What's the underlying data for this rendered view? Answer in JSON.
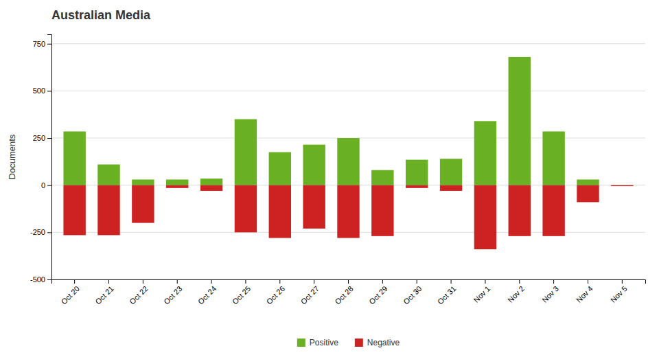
{
  "chart_data": {
    "type": "bar",
    "title": "Australian Media",
    "ylabel": "Documents",
    "categories": [
      "Oct 20",
      "Oct 21",
      "Oct 22",
      "Oct 23",
      "Oct 24",
      "Oct 25",
      "Oct 26",
      "Oct 27",
      "Oct 28",
      "Oct 29",
      "Oct 30",
      "Oct 31",
      "Nov 1",
      "Nov 2",
      "Nov 3",
      "Nov 4",
      "Nov 5"
    ],
    "series": [
      {
        "name": "Positive",
        "color": "#6ab023",
        "values": [
          285,
          110,
          30,
          30,
          35,
          350,
          175,
          215,
          250,
          80,
          135,
          140,
          340,
          680,
          285,
          30,
          0
        ]
      },
      {
        "name": "Negative",
        "color": "#cc2222",
        "values": [
          -265,
          -265,
          -200,
          -15,
          -30,
          -250,
          -280,
          -230,
          -280,
          -270,
          -15,
          -30,
          -340,
          -270,
          -270,
          -90,
          -5
        ]
      }
    ],
    "stacked": true,
    "ylim": [
      -500,
      800
    ],
    "yticks": [
      -500,
      -250,
      0,
      250,
      500,
      750
    ],
    "grid": true,
    "legend": "bottom"
  }
}
